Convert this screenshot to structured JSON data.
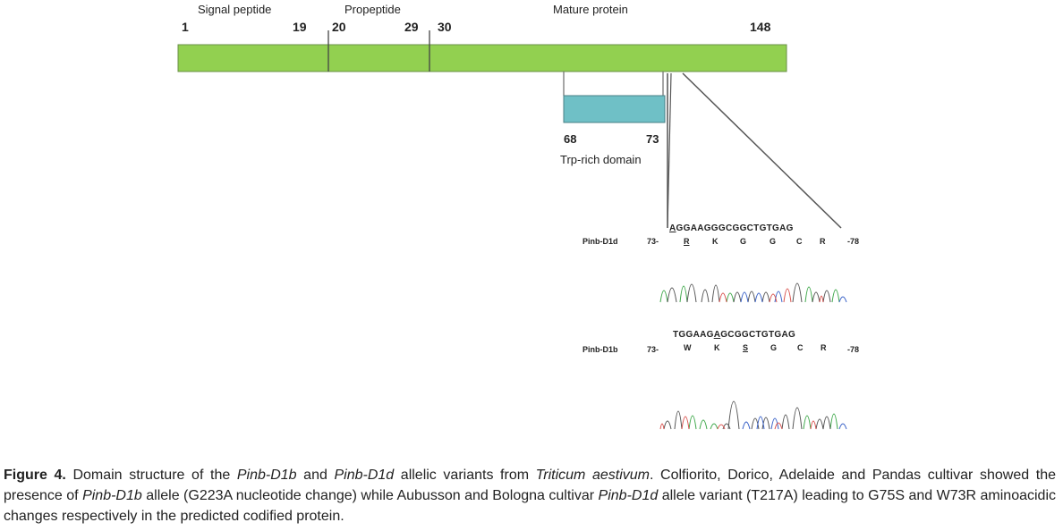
{
  "protein": {
    "regions": [
      {
        "label": "Signal peptide"
      },
      {
        "label": "Propeptide"
      },
      {
        "label": "Mature protein"
      }
    ],
    "positions": [
      "1",
      "19",
      "20",
      "29",
      "30",
      "148"
    ],
    "bar_color": "#92d050"
  },
  "domain": {
    "start": "68",
    "end": "73",
    "name": "Trp-rich domain",
    "color": "#6fc0c6"
  },
  "alleles": [
    {
      "name": "Pinb-D1d",
      "sequence_first": "A",
      "sequence_rest": "GGAAGGGCGGCTGTGAG",
      "start": "73-",
      "end": "-78",
      "residues": [
        {
          "aa": "R",
          "mutated": true
        },
        {
          "aa": "K",
          "mutated": false
        },
        {
          "aa": "G",
          "mutated": false
        },
        {
          "aa": "G",
          "mutated": false
        },
        {
          "aa": "C",
          "mutated": false
        },
        {
          "aa": "R",
          "mutated": false
        }
      ]
    },
    {
      "name": "Pinb-D1b",
      "sequence_before": "TGGAAG",
      "sequence_mut": "A",
      "sequence_after": "GCGGCTGTGAG",
      "start": "73-",
      "end": "-78",
      "residues": [
        {
          "aa": "W",
          "mutated": false
        },
        {
          "aa": "K",
          "mutated": false
        },
        {
          "aa": "S",
          "mutated": true
        },
        {
          "aa": "G",
          "mutated": false
        },
        {
          "aa": "C",
          "mutated": false
        },
        {
          "aa": "R",
          "mutated": false
        }
      ]
    }
  ],
  "caption": {
    "fig": "Figure 4.",
    "t1": " Domain structure of the ",
    "i1": "Pinb-D1b",
    "t2": " and ",
    "i2": "Pinb-D1d",
    "t3": " allelic variants from ",
    "i3": "Triticum aestivum",
    "t4": ". Colfiorito, Dorico, Adelaide and Pandas cultivar showed the presence of ",
    "i4": "Pinb-D1b",
    "t5": " allele (G223A nucleotide change) while Aubusson and Bologna cultivar ",
    "i5": "Pinb-D1d",
    "t6": " allele variant (T217A) leading to G75S and W73R aminoacidic changes respectively in the predicted codified protein."
  },
  "chromatogram_colors": {
    "A": "#3fa84b",
    "C": "#3a62c8",
    "G": "#555555",
    "T": "#d9534f"
  }
}
